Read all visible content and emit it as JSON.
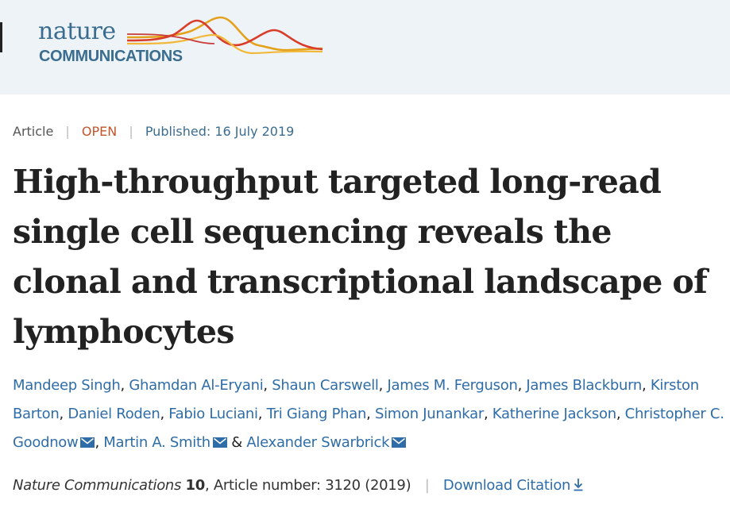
{
  "header": {
    "logo_top": "nature",
    "logo_bottom": "COMMUNICATIONS",
    "background": "#eef3f7",
    "logo_color": "#3a6d8f"
  },
  "meta": {
    "article_type": "Article",
    "separator": "|",
    "access": "OPEN",
    "published": "Published: 16 July 2019"
  },
  "title": "High-throughput targeted long-read single cell sequencing reveals the clonal and transcriptional landscape of lymphocytes",
  "authors": [
    {
      "name": "Mandeep Singh",
      "corresponding": false
    },
    {
      "name": "Ghamdan Al-Eryani",
      "corresponding": false
    },
    {
      "name": "Shaun Carswell",
      "corresponding": false
    },
    {
      "name": "James M. Ferguson",
      "corresponding": false
    },
    {
      "name": "James Blackburn",
      "corresponding": false
    },
    {
      "name": "Kirston Barton",
      "corresponding": false
    },
    {
      "name": "Daniel Roden",
      "corresponding": false
    },
    {
      "name": "Fabio Luciani",
      "corresponding": false
    },
    {
      "name": "Tri Giang Phan",
      "corresponding": false
    },
    {
      "name": "Simon Junankar",
      "corresponding": false
    },
    {
      "name": "Katherine Jackson",
      "corresponding": false
    },
    {
      "name": "Christopher C. Goodnow",
      "corresponding": true
    },
    {
      "name": "Martin A. Smith",
      "corresponding": true
    },
    {
      "name": "Alexander Swarbrick",
      "corresponding": true
    }
  ],
  "author_last_joiner": "&",
  "citation": {
    "journal": "Nature Communications",
    "volume": "10",
    "article_number": ", Article number: 3120 (2019)",
    "separator": "|",
    "download_label": "Download Citation"
  },
  "colors": {
    "link": "#2f6da8",
    "open": "#c4552b",
    "text": "#222222"
  },
  "icons": {
    "mail": "envelope-icon",
    "download": "download-arrow-icon"
  }
}
